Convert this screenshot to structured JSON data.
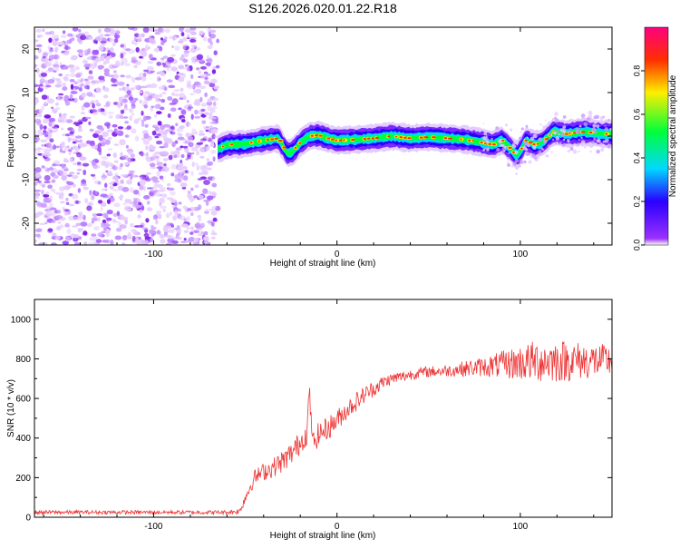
{
  "figure": {
    "title": "S126.2026.020.01.22.R18"
  },
  "chart_data": [
    {
      "type": "heatmap",
      "title": "S126.2026.020.01.22.R18",
      "xlabel": "Height of straight line (km)",
      "ylabel": "Frequency (Hz)",
      "xlim": [
        -165,
        150
      ],
      "ylim": [
        -25,
        25
      ],
      "x_ticks": [
        -100,
        0,
        100
      ],
      "x_tick_labels": [
        "-100",
        "0",
        "100"
      ],
      "y_ticks": [
        -20,
        -10,
        0,
        10,
        20
      ],
      "y_tick_labels": [
        "-20",
        "-10",
        "0",
        "10",
        "20"
      ],
      "noise_region_x": [
        -165,
        -65
      ],
      "colorbar": {
        "label": "Normalized spectral amplitude",
        "range": [
          0,
          1
        ],
        "ticks": [
          0.0,
          0.2,
          0.4,
          0.6,
          0.8
        ],
        "tick_labels": [
          "0.0",
          "0.2",
          "0.4",
          "0.6",
          "0.8"
        ],
        "colors": [
          "#9b30ff",
          "#2a00ff",
          "#00d8ff",
          "#00ff3a",
          "#ffee00",
          "#ff2e00",
          "#ff0080"
        ]
      },
      "ridge": {
        "x": [
          -65,
          -60,
          -50,
          -40,
          -32,
          -27,
          -24,
          -20,
          -15,
          -10,
          -5,
          0,
          10,
          20,
          30,
          40,
          50,
          60,
          70,
          80,
          85,
          90,
          95,
          98,
          100,
          103,
          108,
          112,
          118,
          125,
          135,
          145,
          150
        ],
        "freq": [
          -3,
          -2,
          -1.8,
          -1,
          -0.5,
          -4,
          -3.5,
          -1.5,
          0,
          0.2,
          -0.5,
          -1,
          -0.8,
          -0.5,
          0,
          -0.5,
          -0.2,
          -0.5,
          -0.8,
          -1.5,
          -2,
          -1,
          -3,
          -4.5,
          -3.5,
          -1,
          -2,
          -1.5,
          1,
          0.5,
          1,
          0.5,
          0.5
        ]
      }
    },
    {
      "type": "line",
      "xlabel": "Height of straight line (km)",
      "ylabel": "SNR (10 * v/v)",
      "xlim": [
        -165,
        150
      ],
      "ylim": [
        0,
        1100
      ],
      "x_ticks": [
        -100,
        0,
        100
      ],
      "x_tick_labels": [
        "-100",
        "0",
        "100"
      ],
      "y_ticks": [
        0,
        200,
        400,
        600,
        800,
        1000
      ],
      "y_tick_labels": [
        "0",
        "200",
        "400",
        "600",
        "800",
        "1000"
      ],
      "series": [
        {
          "name": "SNR",
          "color": "#ee3333",
          "x": [
            -165,
            -140,
            -120,
            -100,
            -80,
            -60,
            -53,
            -50,
            -45,
            -40,
            -35,
            -30,
            -25,
            -20,
            -16,
            -15,
            -14,
            -10,
            -5,
            0,
            5,
            10,
            15,
            20,
            25,
            30,
            35,
            40,
            45,
            50,
            60,
            70,
            80,
            90,
            100,
            110,
            120,
            130,
            140,
            150
          ],
          "mean": [
            25,
            25,
            25,
            25,
            25,
            25,
            30,
            100,
            200,
            230,
            250,
            280,
            320,
            380,
            430,
            620,
            360,
            420,
            450,
            490,
            540,
            580,
            620,
            650,
            680,
            700,
            710,
            720,
            730,
            735,
            740,
            750,
            760,
            770,
            780,
            790,
            790,
            790,
            790,
            790
          ],
          "noise": [
            10,
            10,
            10,
            10,
            10,
            10,
            15,
            30,
            40,
            45,
            50,
            55,
            60,
            60,
            60,
            70,
            60,
            60,
            60,
            55,
            50,
            50,
            45,
            40,
            35,
            30,
            30,
            28,
            28,
            28,
            30,
            40,
            50,
            70,
            90,
            110,
            110,
            100,
            90,
            80
          ]
        }
      ]
    }
  ]
}
